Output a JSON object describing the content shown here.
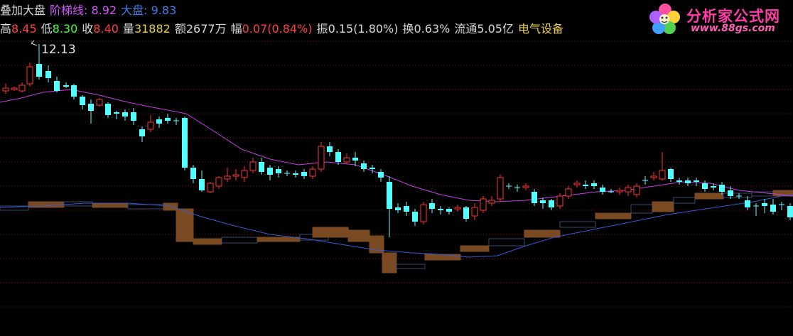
{
  "header": {
    "row1": [
      {
        "key": "indicator_name",
        "text": "叠加大盘",
        "color": "#d8d8d8"
      },
      {
        "key": "ladder",
        "label": "阶梯线:",
        "value": "8.92",
        "color": "#d154ff"
      },
      {
        "key": "market",
        "label": "大盘:",
        "value": "9.83",
        "color": "#3f7ce0"
      }
    ],
    "row2": [
      {
        "key": "high",
        "label": "高",
        "value": "8.45",
        "color": "#ff4040"
      },
      {
        "key": "low",
        "label": "低",
        "value": "8.30",
        "color": "#40ff40"
      },
      {
        "key": "close",
        "label": "收",
        "value": "8.40",
        "color": "#ff4040"
      },
      {
        "key": "volume",
        "label": "量",
        "value": "31882",
        "color": "#e8d040"
      },
      {
        "key": "amount",
        "label": "额",
        "value": "2677万",
        "color": "#d8d8d8"
      },
      {
        "key": "change",
        "label": "幅",
        "value": "0.07(0.84%)",
        "color": "#ff4040"
      },
      {
        "key": "amplitude",
        "label": "振",
        "value": "0.15(1.80%)",
        "color": "#d8d8d8"
      },
      {
        "key": "turnover",
        "label": "换",
        "value": "0.63%",
        "color": "#d8d8d8"
      },
      {
        "key": "float",
        "label": "流通",
        "value": "5.05亿",
        "color": "#d8d8d8"
      },
      {
        "key": "sector",
        "label": "",
        "value": "电气设备",
        "color": "#e8d040"
      }
    ]
  },
  "logo": {
    "text": "分析家公式网",
    "url": "www.88gs.com"
  },
  "peak_label": "12.13",
  "colors": {
    "background": "#000000",
    "grid": "#8a1010",
    "up_candle": "#ff3232",
    "down_candle": "#54ffff",
    "ma_line": "#c040e0",
    "market_line": "#3a5ad0",
    "ladder_fill": "#7a4a22",
    "ladder_outline": "#3a4a70",
    "limit_up_wick": "#e8d040"
  }
}
